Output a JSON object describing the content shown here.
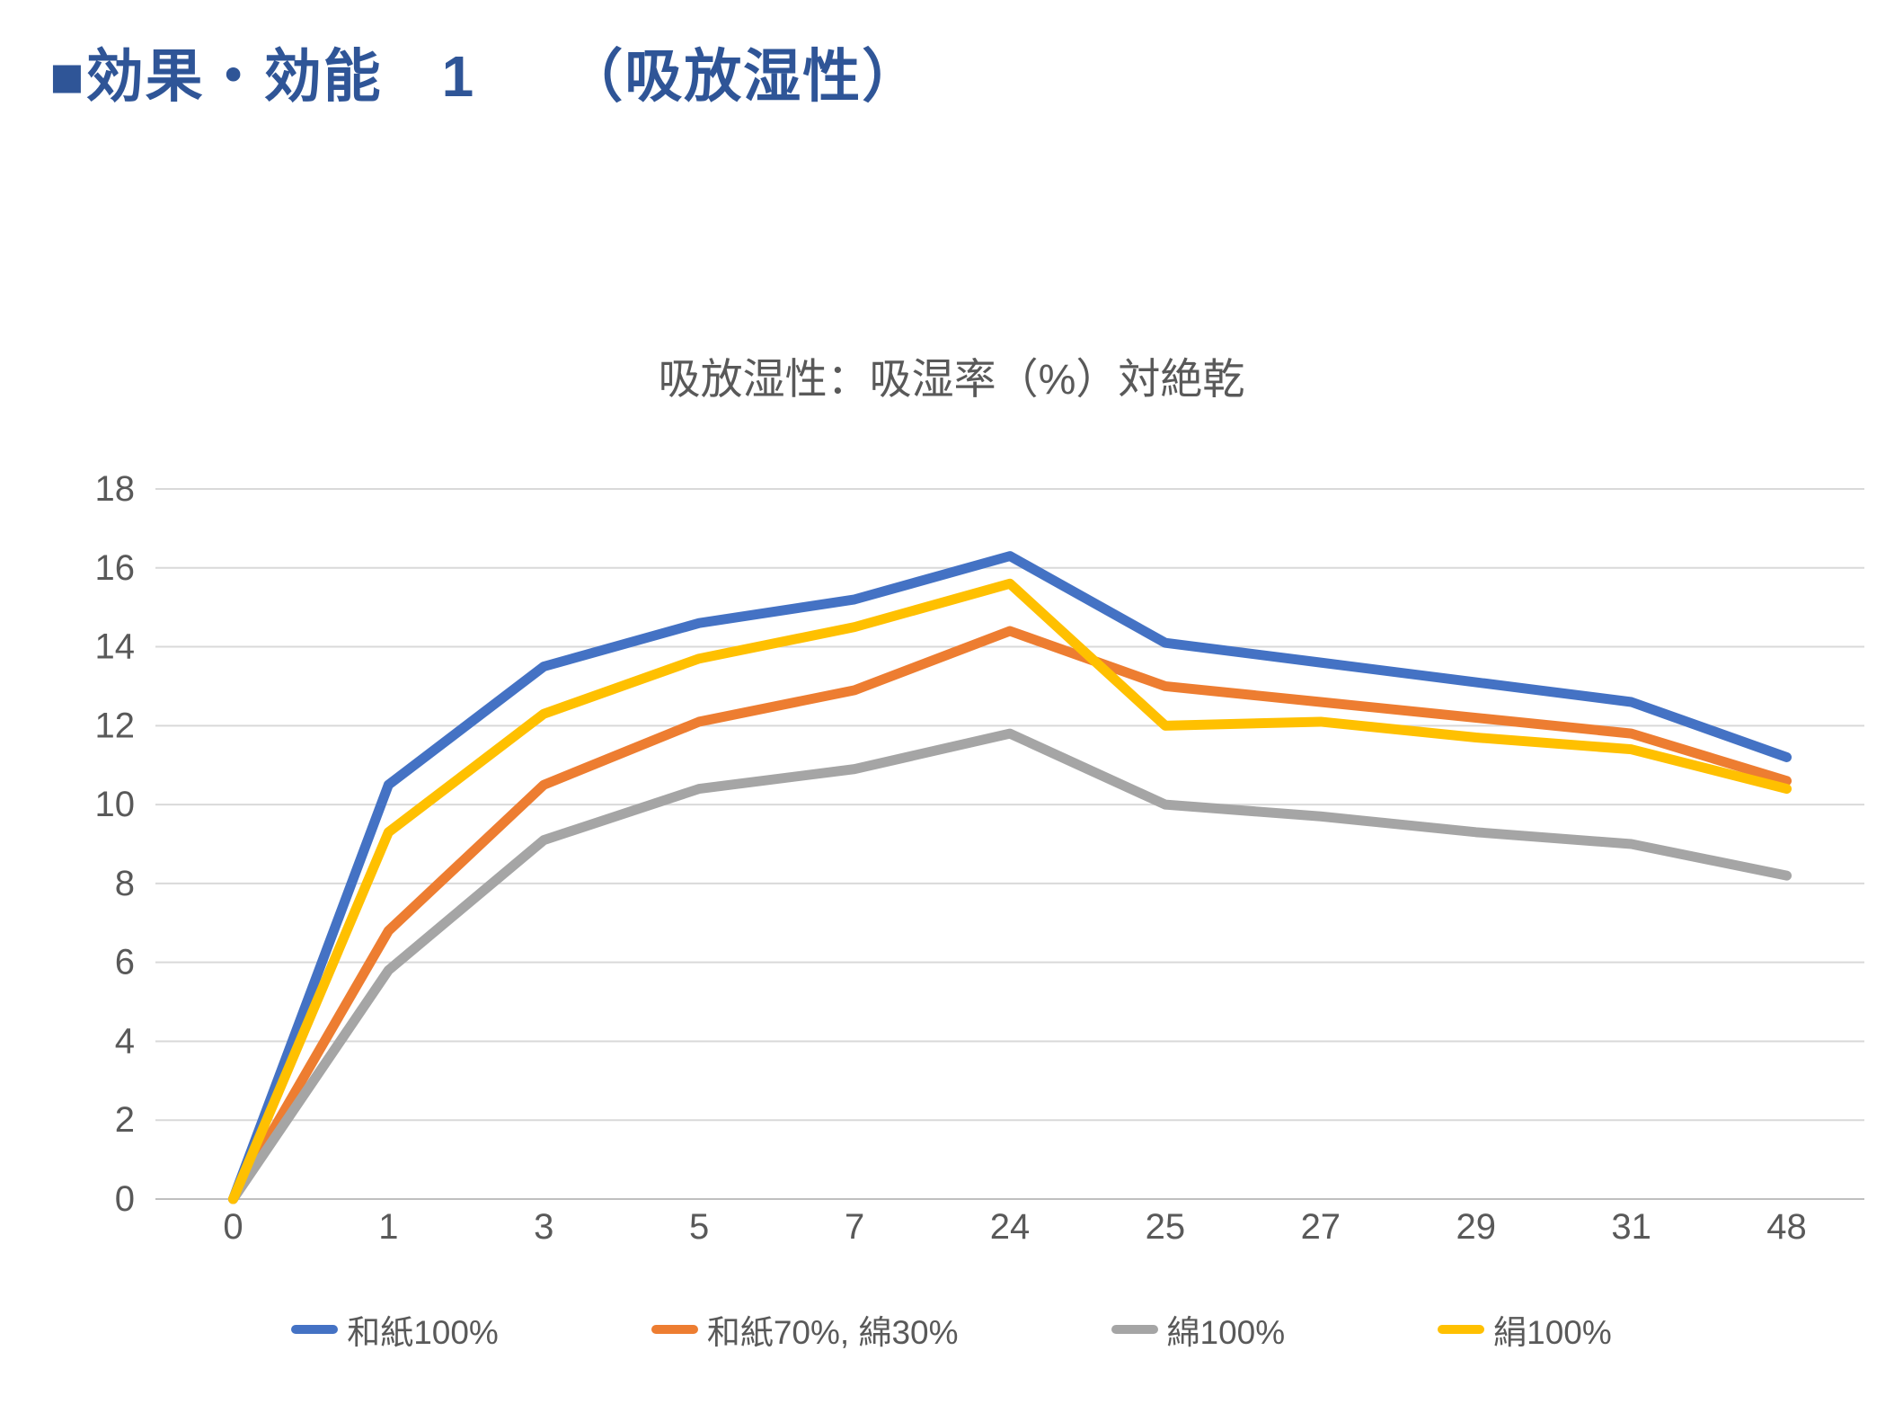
{
  "slide": {
    "heading": "■効果・効能　1　　（吸放湿性）",
    "heading_color": "#2F5597"
  },
  "chart_data": {
    "type": "line",
    "title": "吸放湿性：吸湿率（%）対絶乾",
    "xlabel": "",
    "ylabel": "",
    "categories": [
      "0",
      "1",
      "3",
      "5",
      "7",
      "24",
      "25",
      "27",
      "29",
      "31",
      "48"
    ],
    "series": [
      {
        "name": "和紙100%",
        "color": "#4472C4",
        "values": [
          0,
          10.5,
          13.5,
          14.6,
          15.2,
          16.3,
          14.1,
          13.6,
          13.1,
          12.6,
          11.2
        ]
      },
      {
        "name": "和紙70%, 綿30%",
        "color": "#ED7D31",
        "values": [
          0,
          6.8,
          10.5,
          12.1,
          12.9,
          14.4,
          13.0,
          12.6,
          12.2,
          11.8,
          10.6
        ]
      },
      {
        "name": "綿100%",
        "color": "#A5A5A5",
        "values": [
          0,
          5.8,
          9.1,
          10.4,
          10.9,
          11.8,
          10.0,
          9.7,
          9.3,
          9.0,
          8.2
        ]
      },
      {
        "name": "絹100%",
        "color": "#FFC000",
        "values": [
          0,
          9.3,
          12.3,
          13.7,
          14.5,
          15.6,
          12.0,
          12.1,
          11.7,
          11.4,
          10.4
        ]
      }
    ],
    "ylim": [
      0,
      18
    ],
    "ytick_step": 2,
    "grid": true,
    "legend_position": "bottom"
  },
  "colors": {
    "gridline": "#D9D9D9",
    "baseline": "#BFBFBF",
    "axis_text": "#595959",
    "chart_title_text": "#595959"
  }
}
